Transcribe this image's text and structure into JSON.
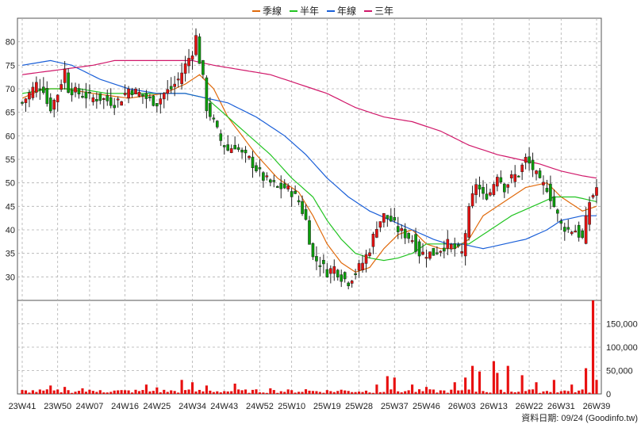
{
  "chart_data": {
    "type": "candlestick",
    "grid": true,
    "colors": {
      "up": "#e81010",
      "down": "#0a9e0a",
      "volume": "#e81010",
      "grid": "#b0b0b0"
    },
    "legend": {
      "placement": "top-center",
      "items": [
        {
          "name": "季線",
          "color": "#e06a0c"
        },
        {
          "name": "半年",
          "color": "#22c422"
        },
        {
          "name": "年線",
          "color": "#1a5fd8"
        },
        {
          "name": "三年",
          "color": "#d0186a"
        }
      ]
    },
    "price_axis": {
      "ylim": [
        25,
        85
      ],
      "ticks": [
        "30",
        "35",
        "40",
        "45",
        "50",
        "55",
        "60",
        "65",
        "70",
        "75",
        "80"
      ],
      "tick_values": [
        30,
        35,
        40,
        45,
        50,
        55,
        60,
        65,
        70,
        75,
        80
      ]
    },
    "volume_axis": {
      "ylim": [
        0,
        200000
      ],
      "ticks": [
        "0",
        "50,000",
        "100,000",
        "150,000"
      ],
      "tick_values": [
        0,
        50000,
        100000,
        150000
      ]
    },
    "x_ticks": [
      "23W41",
      "23W50",
      "24W07",
      "24W16",
      "24W25",
      "24W34",
      "24W43",
      "24W52",
      "25W10",
      "25W19",
      "25W28",
      "25W37",
      "25W46",
      "26W03",
      "26W13",
      "26W22",
      "26W31",
      "26W39"
    ],
    "close_points": [
      [
        0,
        67
      ],
      [
        2,
        69
      ],
      [
        4,
        71
      ],
      [
        6,
        70
      ],
      [
        7,
        67
      ],
      [
        8,
        66
      ],
      [
        10,
        69
      ],
      [
        12,
        74
      ],
      [
        13,
        70
      ],
      [
        16,
        69
      ],
      [
        20,
        68
      ],
      [
        22,
        68
      ],
      [
        26,
        67
      ],
      [
        28,
        68
      ],
      [
        30,
        70
      ],
      [
        33,
        69
      ],
      [
        35,
        68
      ],
      [
        38,
        67
      ],
      [
        40,
        69
      ],
      [
        42,
        70
      ],
      [
        44,
        72
      ],
      [
        46,
        75
      ],
      [
        48,
        78
      ],
      [
        49,
        81
      ],
      [
        50,
        76
      ],
      [
        51,
        72
      ],
      [
        52,
        66
      ],
      [
        54,
        63
      ],
      [
        56,
        59
      ],
      [
        58,
        57
      ],
      [
        60,
        58
      ],
      [
        62,
        56
      ],
      [
        64,
        55
      ],
      [
        66,
        53
      ],
      [
        68,
        51
      ],
      [
        70,
        50
      ],
      [
        72,
        49
      ],
      [
        74,
        49
      ],
      [
        76,
        48
      ],
      [
        78,
        46
      ],
      [
        80,
        42
      ],
      [
        82,
        34
      ],
      [
        84,
        33
      ],
      [
        86,
        31
      ],
      [
        88,
        32
      ],
      [
        90,
        30
      ],
      [
        92,
        29
      ],
      [
        94,
        31
      ],
      [
        96,
        33
      ],
      [
        98,
        36
      ],
      [
        100,
        41
      ],
      [
        102,
        43
      ],
      [
        104,
        42
      ],
      [
        106,
        40
      ],
      [
        108,
        39
      ],
      [
        110,
        38
      ],
      [
        112,
        35
      ],
      [
        114,
        35
      ],
      [
        116,
        35
      ],
      [
        118,
        36
      ],
      [
        120,
        37
      ],
      [
        122,
        36
      ],
      [
        124,
        35
      ],
      [
        126,
        44
      ],
      [
        128,
        50
      ],
      [
        130,
        47
      ],
      [
        132,
        48
      ],
      [
        134,
        52
      ],
      [
        136,
        49
      ],
      [
        138,
        51
      ],
      [
        140,
        52
      ],
      [
        142,
        55
      ],
      [
        144,
        53
      ],
      [
        146,
        50
      ],
      [
        148,
        49
      ],
      [
        150,
        45
      ],
      [
        152,
        41
      ],
      [
        154,
        40
      ],
      [
        156,
        40
      ],
      [
        158,
        38
      ],
      [
        160,
        46
      ],
      [
        162,
        49
      ]
    ],
    "ma_series": [
      {
        "name": "季線",
        "points": [
          [
            0,
            68
          ],
          [
            6,
            70
          ],
          [
            12,
            70
          ],
          [
            20,
            69
          ],
          [
            30,
            68
          ],
          [
            40,
            69
          ],
          [
            46,
            71
          ],
          [
            50,
            73
          ],
          [
            54,
            70
          ],
          [
            58,
            64
          ],
          [
            62,
            60
          ],
          [
            66,
            56
          ],
          [
            72,
            51
          ],
          [
            78,
            48
          ],
          [
            82,
            43
          ],
          [
            86,
            37
          ],
          [
            90,
            33
          ],
          [
            94,
            31
          ],
          [
            98,
            32
          ],
          [
            102,
            36
          ],
          [
            106,
            39
          ],
          [
            110,
            40
          ],
          [
            114,
            37
          ],
          [
            118,
            36
          ],
          [
            122,
            36
          ],
          [
            126,
            38
          ],
          [
            130,
            43
          ],
          [
            136,
            46
          ],
          [
            142,
            49
          ],
          [
            148,
            50
          ],
          [
            152,
            47
          ],
          [
            158,
            44
          ],
          [
            162,
            45
          ]
        ]
      },
      {
        "name": "半年",
        "points": [
          [
            0,
            69
          ],
          [
            8,
            70
          ],
          [
            16,
            70
          ],
          [
            24,
            69
          ],
          [
            32,
            69
          ],
          [
            40,
            69
          ],
          [
            46,
            69
          ],
          [
            52,
            68
          ],
          [
            58,
            64
          ],
          [
            64,
            60
          ],
          [
            70,
            56
          ],
          [
            76,
            51
          ],
          [
            82,
            47
          ],
          [
            86,
            42
          ],
          [
            90,
            38
          ],
          [
            94,
            35
          ],
          [
            98,
            34
          ],
          [
            102,
            33.5
          ],
          [
            106,
            34
          ],
          [
            110,
            35
          ],
          [
            114,
            37
          ],
          [
            120,
            37
          ],
          [
            126,
            37
          ],
          [
            132,
            40
          ],
          [
            138,
            43
          ],
          [
            144,
            45
          ],
          [
            150,
            47
          ],
          [
            156,
            47
          ],
          [
            162,
            46
          ]
        ]
      },
      {
        "name": "年線",
        "points": [
          [
            0,
            75
          ],
          [
            8,
            76
          ],
          [
            14,
            75
          ],
          [
            22,
            72
          ],
          [
            30,
            70
          ],
          [
            38,
            69
          ],
          [
            46,
            69
          ],
          [
            52,
            68
          ],
          [
            58,
            67
          ],
          [
            66,
            64
          ],
          [
            74,
            60
          ],
          [
            80,
            56
          ],
          [
            86,
            51
          ],
          [
            92,
            47
          ],
          [
            98,
            44
          ],
          [
            104,
            42
          ],
          [
            110,
            40
          ],
          [
            116,
            38
          ],
          [
            120,
            37
          ],
          [
            124,
            37
          ],
          [
            130,
            36
          ],
          [
            136,
            37
          ],
          [
            142,
            38
          ],
          [
            148,
            40
          ],
          [
            152,
            42
          ],
          [
            158,
            43
          ],
          [
            162,
            43
          ]
        ]
      },
      {
        "name": "三年",
        "points": [
          [
            0,
            73
          ],
          [
            10,
            74
          ],
          [
            20,
            75
          ],
          [
            26,
            76
          ],
          [
            32,
            76
          ],
          [
            40,
            76
          ],
          [
            48,
            76
          ],
          [
            54,
            75
          ],
          [
            62,
            74
          ],
          [
            70,
            73
          ],
          [
            78,
            71
          ],
          [
            86,
            69
          ],
          [
            94,
            66
          ],
          [
            102,
            64
          ],
          [
            110,
            63
          ],
          [
            118,
            61
          ],
          [
            126,
            58
          ],
          [
            134,
            56
          ],
          [
            140,
            55
          ],
          [
            146,
            54
          ],
          [
            152,
            52.5
          ],
          [
            158,
            51.5
          ],
          [
            162,
            51
          ]
        ]
      }
    ],
    "volume_spikes": [
      [
        8,
        18000
      ],
      [
        12,
        15000
      ],
      [
        17,
        12000
      ],
      [
        22,
        8000
      ],
      [
        35,
        20000
      ],
      [
        38,
        14000
      ],
      [
        45,
        30000
      ],
      [
        48,
        25000
      ],
      [
        52,
        18000
      ],
      [
        60,
        22000
      ],
      [
        70,
        12000
      ],
      [
        80,
        10000
      ],
      [
        90,
        9000
      ],
      [
        100,
        20000
      ],
      [
        103,
        38000
      ],
      [
        105,
        35000
      ],
      [
        110,
        20000
      ],
      [
        114,
        15000
      ],
      [
        122,
        25000
      ],
      [
        125,
        35000
      ],
      [
        127,
        60000
      ],
      [
        129,
        48000
      ],
      [
        133,
        70000
      ],
      [
        134,
        45000
      ],
      [
        137,
        60000
      ],
      [
        141,
        40000
      ],
      [
        145,
        25000
      ],
      [
        150,
        30000
      ],
      [
        155,
        20000
      ],
      [
        159,
        55000
      ],
      [
        161,
        210000
      ],
      [
        162,
        30000
      ]
    ],
    "n_weeks": 163
  },
  "footer": {
    "date_label": "資料日期: 09/24  (Goodinfo.tw)"
  }
}
